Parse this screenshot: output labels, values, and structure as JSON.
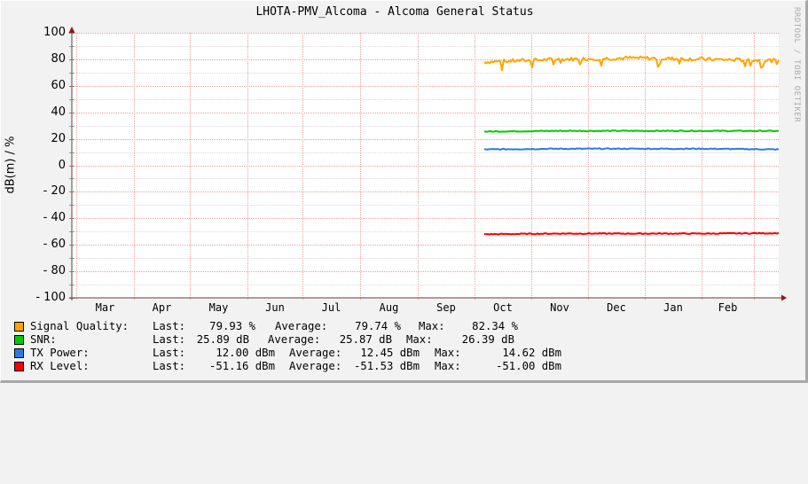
{
  "chart_data": {
    "type": "line",
    "title": "LHOTA-PMV_Alcoma - Alcoma General Status",
    "watermark": "RRDTOOL / TOBI OETIKER",
    "xlabel": "",
    "ylabel": "dB(m) / %",
    "ylim": [
      -100,
      100
    ],
    "grid": true,
    "y_ticks": [
      "100",
      "80",
      "60",
      "40",
      "20",
      "0",
      "-20",
      "-40",
      "-60",
      "-80",
      "-100"
    ],
    "x_ticks": [
      "Mar",
      "Apr",
      "May",
      "Jun",
      "Jul",
      "Aug",
      "Sep",
      "Oct",
      "Nov",
      "Dec",
      "Jan",
      "Feb"
    ],
    "x": [
      "Oct",
      "Nov",
      "Dec",
      "Jan",
      "Feb"
    ],
    "legend_position": "bottom",
    "series": [
      {
        "name": "Signal Quality",
        "color": "#FFA500",
        "unit": "%",
        "last": 79.93,
        "average": 79.74,
        "max": 82.34,
        "approx_values": [
          78,
          80,
          81,
          80,
          79
        ]
      },
      {
        "name": "SNR",
        "color": "#00CC00",
        "unit": "dB",
        "last": 25.89,
        "average": 25.87,
        "max": 26.39,
        "approx_values": [
          25.5,
          26,
          26,
          26,
          25.9
        ]
      },
      {
        "name": "TX Power",
        "color": "#2D7BE0",
        "unit": "dBm",
        "last": 12.0,
        "average": 12.45,
        "max": 14.62,
        "approx_values": [
          12,
          12.5,
          12.5,
          12.5,
          12
        ]
      },
      {
        "name": "RX Level",
        "color": "#FF0000",
        "unit": "dBm",
        "last": -51.16,
        "average": -51.53,
        "max": -51.0,
        "approx_values": [
          -52,
          -51.5,
          -51.5,
          -51.5,
          -51.2
        ]
      }
    ]
  },
  "legend": [
    {
      "label": "Signal Quality:",
      "last_label": "Last:",
      "last": "79.93 %",
      "avg_label": "Average:",
      "avg": "79.74 %",
      "max_label": "Max:",
      "max": "82.34 %",
      "color": "#FFA500"
    },
    {
      "label": "SNR:",
      "last_label": "Last:",
      "last": "25.89 dB",
      "avg_label": "Average:",
      "avg": "25.87 dB",
      "max_label": "Max:",
      "max": "26.39 dB",
      "color": "#00CC00"
    },
    {
      "label": "TX Power:",
      "last_label": "Last:",
      "last": "12.00 dBm",
      "avg_label": "Average:",
      "avg": "12.45 dBm",
      "max_label": "Max:",
      "max": "14.62 dBm",
      "color": "#2D7BE0"
    },
    {
      "label": "RX Level:",
      "last_label": "Last:",
      "last": "-51.16 dBm",
      "avg_label": "Average:",
      "avg": "-51.53 dBm",
      "max_label": "Max:",
      "max": "-51.00 dBm",
      "color": "#FF0000"
    }
  ]
}
